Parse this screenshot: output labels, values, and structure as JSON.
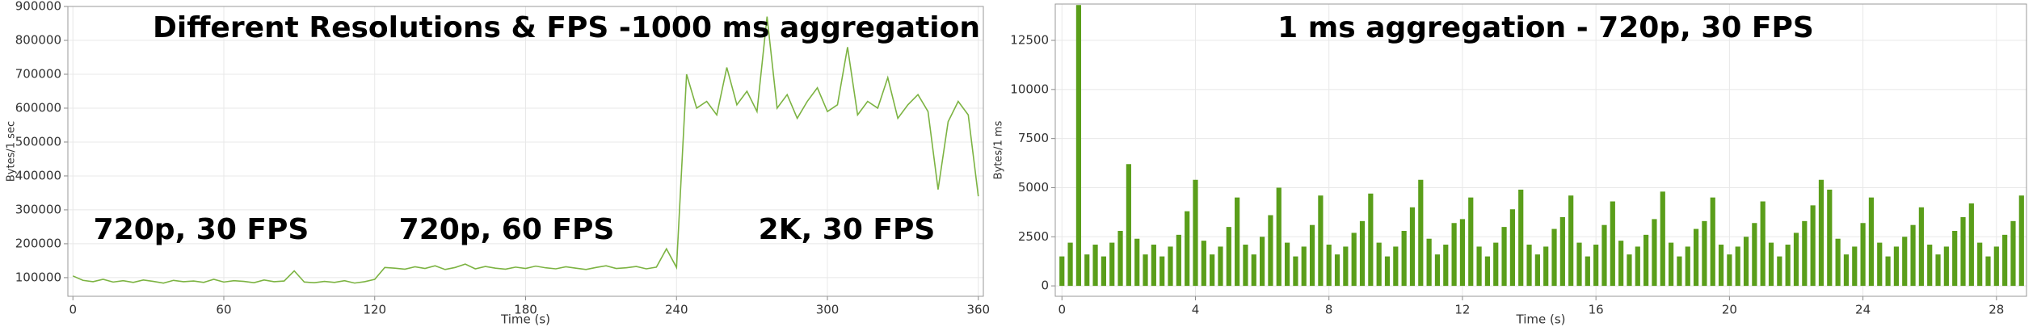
{
  "chart_data": [
    {
      "type": "line",
      "title": "Different Resolutions & FPS -1000 ms aggregation",
      "xlabel": "Time (s)",
      "ylabel": "Bytes/1 sec",
      "annotations": [
        "720p, 30 FPS",
        "720p, 60 FPS",
        "2K, 30 FPS"
      ],
      "x": [
        0,
        4,
        8,
        12,
        16,
        20,
        24,
        28,
        32,
        36,
        40,
        44,
        48,
        52,
        56,
        60,
        64,
        68,
        72,
        76,
        80,
        84,
        88,
        92,
        96,
        100,
        104,
        108,
        112,
        116,
        120,
        124,
        128,
        132,
        136,
        140,
        144,
        148,
        152,
        156,
        160,
        164,
        168,
        172,
        176,
        180,
        184,
        188,
        192,
        196,
        200,
        204,
        208,
        212,
        216,
        220,
        224,
        228,
        232,
        236,
        240,
        244,
        248,
        252,
        256,
        260,
        264,
        268,
        272,
        276,
        280,
        284,
        288,
        292,
        296,
        300,
        304,
        308,
        312,
        316,
        320,
        324,
        328,
        332,
        336,
        340,
        344,
        348,
        352,
        356,
        360
      ],
      "series": [
        {
          "name": "Bytes/1 sec",
          "color": "#7cb342",
          "values": [
            105000,
            92000,
            88000,
            95000,
            87000,
            91000,
            86000,
            93000,
            89000,
            84000,
            92000,
            88000,
            90000,
            86000,
            95000,
            87000,
            91000,
            89000,
            85000,
            93000,
            88000,
            90000,
            120000,
            87000,
            85000,
            89000,
            86000,
            91000,
            84000,
            88000,
            95000,
            130000,
            128000,
            125000,
            132000,
            127000,
            135000,
            124000,
            130000,
            140000,
            126000,
            133000,
            128000,
            125000,
            131000,
            127000,
            134000,
            129000,
            126000,
            132000,
            128000,
            124000,
            130000,
            135000,
            127000,
            129000,
            133000,
            126000,
            131000,
            185000,
            130000,
            700000,
            600000,
            620000,
            580000,
            720000,
            610000,
            650000,
            590000,
            870000,
            600000,
            640000,
            570000,
            620000,
            660000,
            590000,
            610000,
            780000,
            580000,
            620000,
            600000,
            690000,
            570000,
            610000,
            640000,
            590000,
            360000,
            560000,
            620000,
            580000,
            340000
          ]
        }
      ],
      "xlim": [
        -2,
        362
      ],
      "xticks": [
        0,
        60,
        120,
        180,
        240,
        300,
        360
      ],
      "ylim": [
        45000,
        900000
      ],
      "yticks": [
        100000,
        200000,
        300000,
        400000,
        500000,
        600000,
        700000,
        800000,
        900000
      ],
      "grid": true
    },
    {
      "type": "bar",
      "title": "1 ms aggregation - 720p, 30 FPS",
      "xlabel": "Time (s)",
      "ylabel": "Bytes/1 ms",
      "annotations": [],
      "x": [
        0,
        0.25,
        0.5,
        0.75,
        1,
        1.25,
        1.5,
        1.75,
        2,
        2.25,
        2.5,
        2.75,
        3,
        3.25,
        3.5,
        3.75,
        4,
        4.25,
        4.5,
        4.75,
        5,
        5.25,
        5.5,
        5.75,
        6,
        6.25,
        6.5,
        6.75,
        7,
        7.25,
        7.5,
        7.75,
        8,
        8.25,
        8.5,
        8.75,
        9,
        9.25,
        9.5,
        9.75,
        10,
        10.25,
        10.5,
        10.75,
        11,
        11.25,
        11.5,
        11.75,
        12,
        12.25,
        12.5,
        12.75,
        13,
        13.25,
        13.5,
        13.75,
        14,
        14.25,
        14.5,
        14.75,
        15,
        15.25,
        15.5,
        15.75,
        16,
        16.25,
        16.5,
        16.75,
        17,
        17.25,
        17.5,
        17.75,
        18,
        18.25,
        18.5,
        18.75,
        19,
        19.25,
        19.5,
        19.75,
        20,
        20.25,
        20.5,
        20.75,
        21,
        21.25,
        21.5,
        21.75,
        22,
        22.25,
        22.5,
        22.75,
        23,
        23.25,
        23.5,
        23.75,
        24,
        24.25,
        24.5,
        24.75,
        25,
        25.25,
        25.5,
        25.75,
        26,
        26.25,
        26.5,
        26.75,
        27,
        27.25,
        27.5,
        27.75,
        28,
        28.25,
        28.5,
        28.75
      ],
      "series": [
        {
          "name": "Bytes/1 ms",
          "color": "#5a9e1a",
          "values": [
            1500,
            2200,
            14300,
            1600,
            2100,
            1500,
            2200,
            2800,
            6200,
            2400,
            1600,
            2100,
            1500,
            2000,
            2600,
            3800,
            5400,
            2300,
            1600,
            2000,
            3000,
            4500,
            2100,
            1600,
            2500,
            3600,
            5000,
            2200,
            1500,
            2000,
            3100,
            4600,
            2100,
            1600,
            2000,
            2700,
            3300,
            4700,
            2200,
            1500,
            2000,
            2800,
            4000,
            5400,
            2400,
            1600,
            2100,
            3200,
            3400,
            4500,
            2000,
            1500,
            2200,
            3000,
            3900,
            4900,
            2100,
            1600,
            2000,
            2900,
            3500,
            4600,
            2200,
            1500,
            2100,
            3100,
            4300,
            2300,
            1600,
            2000,
            2600,
            3400,
            4800,
            2200,
            1500,
            2000,
            2900,
            3300,
            4500,
            2100,
            1600,
            2000,
            2500,
            3200,
            4300,
            2200,
            1500,
            2100,
            2700,
            3300,
            4100,
            5400,
            4900,
            2400,
            1600,
            2000,
            3200,
            4500,
            2200,
            1500,
            2000,
            2500,
            3100,
            4000,
            2100,
            1600,
            2000,
            2800,
            3500,
            4200,
            2200,
            1500,
            2000,
            2600,
            3300,
            4600
          ]
        }
      ],
      "xlim": [
        -0.2,
        28.9
      ],
      "xticks": [
        0,
        4,
        8,
        12,
        16,
        20,
        24,
        28
      ],
      "ylim": [
        -530,
        14350
      ],
      "yticks": [
        0,
        2500,
        5000,
        7500,
        10000,
        12500
      ],
      "grid": true
    }
  ]
}
